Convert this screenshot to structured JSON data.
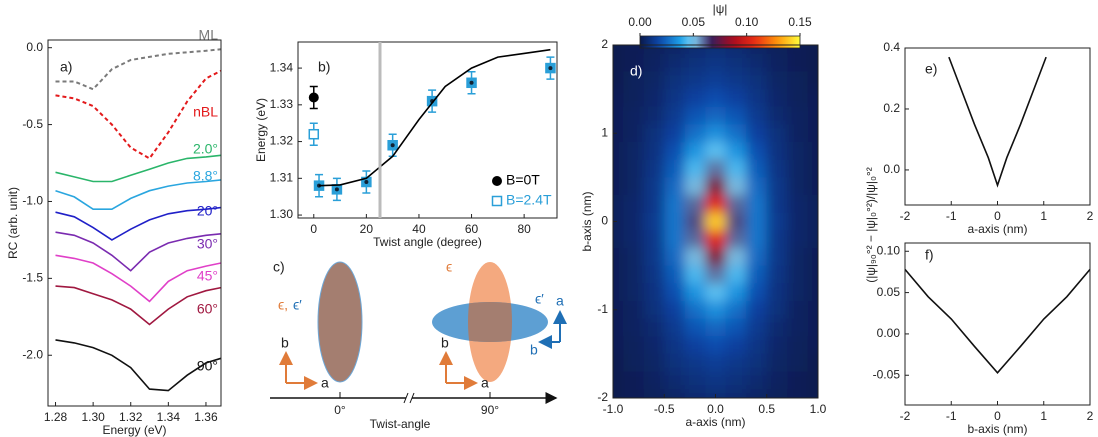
{
  "chart_data": [
    {
      "type": "line",
      "panel_label": "a)",
      "xlabel": "Energy (eV)",
      "ylabel": "RC (arb. unit)",
      "xlim": [
        1.276,
        1.368
      ],
      "ylim": [
        -2.33,
        0.05
      ],
      "xticks": [
        1.28,
        {
          "value": 1.3,
          "label": "1.30"
        },
        1.32,
        1.34,
        1.36
      ],
      "yticks": [
        {
          "value": 0,
          "label": "0.0"
        },
        -0.5,
        {
          "value": -1,
          "label": "-1.0"
        },
        -1.5,
        {
          "value": -2,
          "label": "-2.0"
        }
      ],
      "x": [
        1.28,
        1.29,
        1.3,
        1.31,
        1.32,
        1.33,
        1.34,
        1.35,
        1.36,
        1.368
      ],
      "series": [
        {
          "name": "ML",
          "color": "#7a7a7a",
          "dashed": true,
          "values": [
            -0.22,
            -0.22,
            -0.27,
            -0.14,
            -0.08,
            -0.06,
            -0.04,
            -0.03,
            -0.02,
            -0.01
          ]
        },
        {
          "name": "nBL",
          "color": "#e31a1c",
          "dashed": true,
          "values": [
            -0.31,
            -0.33,
            -0.38,
            -0.5,
            -0.65,
            -0.72,
            -0.55,
            -0.35,
            -0.2,
            -0.15
          ]
        },
        {
          "name": "2.0°",
          "color": "#2ab56a",
          "values": [
            -0.81,
            -0.84,
            -0.87,
            -0.87,
            -0.83,
            -0.79,
            -0.75,
            -0.72,
            -0.71,
            -0.7
          ]
        },
        {
          "name": "8.8°",
          "color": "#2aa6df",
          "values": [
            -0.93,
            -0.97,
            -1.05,
            -1.05,
            -0.98,
            -0.93,
            -0.9,
            -0.88,
            -0.87,
            -0.86
          ]
        },
        {
          "name": "20°",
          "color": "#2020c8",
          "values": [
            -1.07,
            -1.1,
            -1.17,
            -1.25,
            -1.18,
            -1.12,
            -1.08,
            -1.06,
            -1.05,
            -1.04
          ]
        },
        {
          "name": "30°",
          "color": "#7a2bb0",
          "values": [
            -1.2,
            -1.22,
            -1.27,
            -1.35,
            -1.45,
            -1.33,
            -1.27,
            -1.24,
            -1.22,
            -1.21
          ]
        },
        {
          "name": "45°",
          "color": "#e040c8",
          "values": [
            -1.35,
            -1.37,
            -1.4,
            -1.47,
            -1.55,
            -1.65,
            -1.52,
            -1.45,
            -1.42,
            -1.4
          ]
        },
        {
          "name": "60°",
          "color": "#a01840",
          "values": [
            -1.55,
            -1.56,
            -1.6,
            -1.64,
            -1.7,
            -1.8,
            -1.7,
            -1.62,
            -1.58,
            -1.56
          ]
        },
        {
          "name": "90°",
          "color": "#111111",
          "values": [
            -1.9,
            -1.92,
            -1.95,
            -2.0,
            -2.08,
            -2.22,
            -2.23,
            -2.13,
            -2.05,
            -2.02
          ]
        }
      ]
    },
    {
      "type": "errorbar",
      "panel_label": "b)",
      "xlabel": "Twist angle (degree)",
      "ylabel": "Energy (eV)",
      "xlim": [
        -6,
        92.5
      ],
      "ylim": [
        1.2992,
        1.3471
      ],
      "xticks": [
        0,
        20,
        40,
        60,
        80
      ],
      "yticks": [
        {
          "value": 1.3,
          "label": "1.30"
        },
        1.31,
        1.32,
        1.33,
        1.34
      ],
      "series": [
        {
          "name": "B=0T",
          "color": "#000000",
          "marker": "circle",
          "x": [
            0
          ],
          "values": [
            1.332
          ],
          "errors": [
            0.003
          ]
        },
        {
          "name": "B=2.4T",
          "color": "#2a9fd8",
          "marker": "square",
          "x": [
            0,
            2.0,
            8.8,
            20,
            30,
            45,
            60,
            90
          ],
          "values": [
            1.322,
            1.308,
            1.307,
            1.309,
            1.319,
            1.331,
            1.336,
            1.34
          ],
          "errors": [
            0.003,
            0.003,
            0.003,
            0.003,
            0.003,
            0.003,
            0.003,
            0.003
          ]
        },
        {
          "color": "#000000",
          "marker": "line",
          "x": [
            2,
            10,
            20,
            30,
            40,
            50,
            60,
            70,
            80,
            90
          ],
          "values": [
            1.308,
            1.3082,
            1.31,
            1.316,
            1.326,
            1.335,
            1.34,
            1.343,
            1.344,
            1.345
          ]
        }
      ]
    },
    {
      "type": "heatmap",
      "panel_label": "d)",
      "xlabel": "a-axis (nm)",
      "ylabel": "b-axis (nm)",
      "xlim": [
        -1,
        1
      ],
      "ylim": [
        -2,
        2
      ],
      "xticks": [
        {
          "value": -1,
          "label": "-1.0"
        },
        -0.5,
        {
          "value": 0,
          "label": "0.0"
        },
        0.5,
        {
          "value": 1,
          "label": "1.0"
        }
      ],
      "yticks": [
        -2,
        -1,
        0,
        1,
        2
      ],
      "colorbar": {
        "label": "|ψ|",
        "lim": [
          0,
          0.15
        ],
        "ticks": [
          {
            "value": 0,
            "label": "0.00"
          },
          0.05,
          {
            "value": 0.1,
            "label": "0.10"
          },
          0.15
        ]
      },
      "x": [
        -1,
        -0.8,
        -0.6,
        -0.4,
        -0.2,
        0,
        0.2,
        0.4,
        0.6,
        0.8,
        1
      ],
      "y": [
        2,
        1.8,
        1.6,
        1.4,
        1.2,
        1,
        0.8,
        0.6,
        0.4,
        0.2,
        0,
        -0.2,
        -0.4,
        -0.6,
        -0.8,
        -1,
        -1.2,
        -1.4,
        -1.6,
        -1.8,
        -2
      ],
      "z": [
        [
          0.001,
          0.002,
          0.003,
          0.005,
          0.007,
          0.008,
          0.007,
          0.005,
          0.003,
          0.002,
          0.001
        ],
        [
          0.001,
          0.002,
          0.004,
          0.007,
          0.009,
          0.011,
          0.009,
          0.007,
          0.004,
          0.002,
          0.001
        ],
        [
          0.001,
          0.003,
          0.005,
          0.009,
          0.012,
          0.014,
          0.012,
          0.009,
          0.005,
          0.003,
          0.001
        ],
        [
          0.002,
          0.003,
          0.006,
          0.011,
          0.016,
          0.019,
          0.016,
          0.011,
          0.006,
          0.003,
          0.002
        ],
        [
          0.002,
          0.004,
          0.007,
          0.013,
          0.021,
          0.025,
          0.021,
          0.013,
          0.007,
          0.004,
          0.002
        ],
        [
          0.002,
          0.004,
          0.009,
          0.016,
          0.027,
          0.034,
          0.027,
          0.016,
          0.009,
          0.004,
          0.002
        ],
        [
          0.002,
          0.005,
          0.01,
          0.02,
          0.035,
          0.045,
          0.035,
          0.02,
          0.01,
          0.005,
          0.002
        ],
        [
          0.002,
          0.005,
          0.011,
          0.023,
          0.043,
          0.059,
          0.043,
          0.023,
          0.011,
          0.005,
          0.002
        ],
        [
          0.002,
          0.005,
          0.012,
          0.026,
          0.052,
          0.079,
          0.052,
          0.026,
          0.012,
          0.005,
          0.002
        ],
        [
          0.003,
          0.006,
          0.012,
          0.028,
          0.06,
          0.105,
          0.06,
          0.028,
          0.012,
          0.006,
          0.003
        ],
        [
          0.003,
          0.006,
          0.013,
          0.028,
          0.063,
          0.14,
          0.063,
          0.028,
          0.013,
          0.006,
          0.003
        ],
        [
          0.003,
          0.006,
          0.012,
          0.028,
          0.06,
          0.105,
          0.06,
          0.028,
          0.012,
          0.006,
          0.003
        ],
        [
          0.002,
          0.005,
          0.012,
          0.026,
          0.052,
          0.079,
          0.052,
          0.026,
          0.012,
          0.005,
          0.002
        ],
        [
          0.002,
          0.005,
          0.011,
          0.023,
          0.043,
          0.059,
          0.043,
          0.023,
          0.011,
          0.005,
          0.002
        ],
        [
          0.002,
          0.005,
          0.01,
          0.02,
          0.035,
          0.045,
          0.035,
          0.02,
          0.01,
          0.005,
          0.002
        ],
        [
          0.002,
          0.004,
          0.009,
          0.016,
          0.027,
          0.034,
          0.027,
          0.016,
          0.009,
          0.004,
          0.002
        ],
        [
          0.002,
          0.004,
          0.007,
          0.013,
          0.021,
          0.025,
          0.021,
          0.013,
          0.007,
          0.004,
          0.002
        ],
        [
          0.002,
          0.003,
          0.006,
          0.011,
          0.016,
          0.019,
          0.016,
          0.011,
          0.006,
          0.003,
          0.002
        ],
        [
          0.001,
          0.003,
          0.005,
          0.009,
          0.012,
          0.014,
          0.012,
          0.009,
          0.005,
          0.003,
          0.001
        ],
        [
          0.001,
          0.002,
          0.004,
          0.007,
          0.009,
          0.011,
          0.009,
          0.007,
          0.004,
          0.002,
          0.001
        ],
        [
          0.001,
          0.002,
          0.003,
          0.005,
          0.007,
          0.008,
          0.007,
          0.005,
          0.003,
          0.002,
          0.001
        ]
      ]
    },
    {
      "type": "line",
      "panel_label": "e)",
      "xlabel": "a-axis (nm)",
      "ylabel": "(|ψ|₉₀°² − |ψ|₀°²)/|ψ|₀°²",
      "xlim": [
        -2,
        2
      ],
      "ylim": [
        -0.115,
        0.4
      ],
      "xticks": [
        -2,
        -1,
        0,
        1,
        2
      ],
      "yticks": [
        {
          "value": 0,
          "label": "0.0"
        },
        0.2,
        0.4
      ],
      "x": [
        -1.05,
        -0.8,
        -0.5,
        -0.2,
        0,
        0.2,
        0.5,
        0.8,
        1.05
      ],
      "series": [
        {
          "color": "#111111",
          "values": [
            0.37,
            0.27,
            0.15,
            0.04,
            -0.05,
            0.04,
            0.15,
            0.27,
            0.37
          ]
        }
      ]
    },
    {
      "type": "line",
      "panel_label": "f)",
      "xlabel": "b-axis (nm)",
      "xlim": [
        -2,
        2
      ],
      "ylim": [
        -0.086,
        0.11
      ],
      "xticks": [
        -2,
        -1,
        0,
        1,
        2
      ],
      "yticks": [
        -0.05,
        {
          "value": 0,
          "label": "0.00"
        },
        0.05,
        {
          "value": 0.1,
          "label": "0.10"
        }
      ],
      "x": [
        -2,
        -1.5,
        -1,
        -0.5,
        0,
        0.5,
        1,
        1.5,
        2
      ],
      "series": [
        {
          "color": "#111111",
          "values": [
            0.078,
            0.045,
            0.018,
            -0.015,
            -0.047,
            -0.015,
            0.018,
            0.045,
            0.078
          ]
        }
      ]
    }
  ],
  "diagram": {
    "label": "c)",
    "left": {
      "eps": "ϵ,",
      "eps_prime": "ϵ′",
      "b": "b",
      "a": "a",
      "angle": "0°"
    },
    "right": {
      "eps": "ϵ",
      "eps_prime": "ϵ′",
      "b": "b",
      "a": "a",
      "b_blue": "b",
      "a_blue": "a",
      "angle": "90°"
    },
    "axis": "Twist-angle"
  }
}
